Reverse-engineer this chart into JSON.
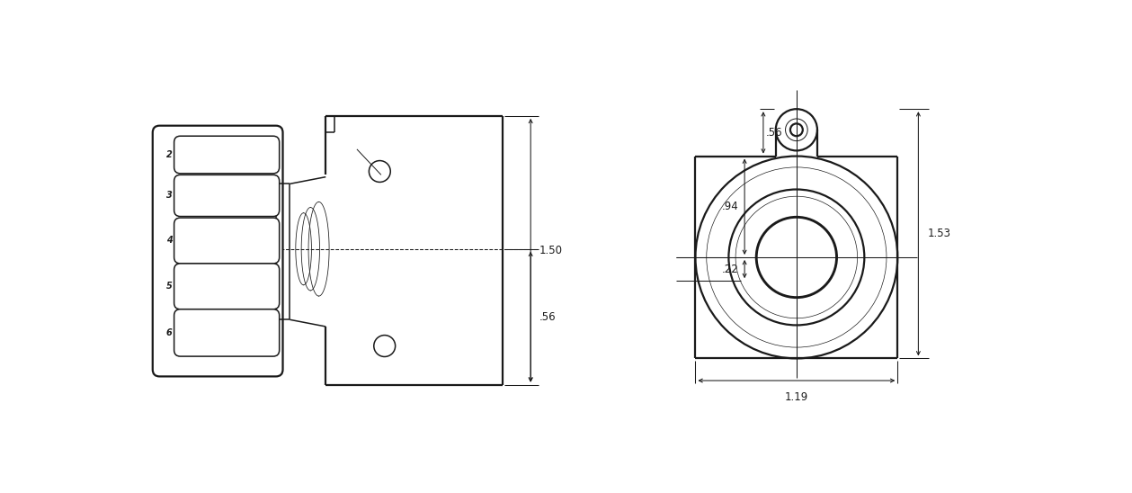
{
  "background": "#ffffff",
  "line_color": "#1a1a1a",
  "lw_thick": 1.6,
  "lw_med": 1.1,
  "lw_thin": 0.7,
  "lw_dim": 0.75,
  "dim_150": "1.50",
  "dim_056_side": ".56",
  "dim_056_front": ".56",
  "dim_094": ".94",
  "dim_022": ".22",
  "dim_119": "1.19",
  "dim_153": "1.53",
  "font_size_dim": 8.5
}
